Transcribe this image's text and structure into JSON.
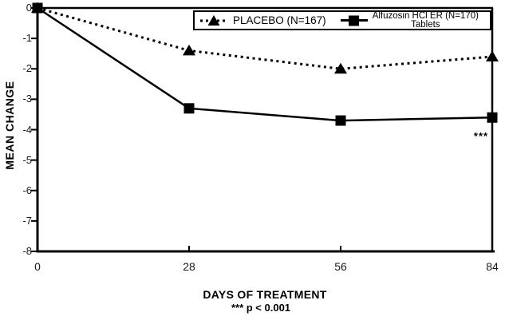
{
  "chart_data": {
    "type": "line",
    "title": "",
    "xlabel": "DAYS OF TREATMENT",
    "ylabel": "MEAN CHANGE",
    "footnote": "*** p < 0.001",
    "significance_annotation": "***",
    "x": [
      0,
      28,
      56,
      84
    ],
    "x_tick_labels": [
      "0",
      "28",
      "56",
      "84"
    ],
    "y_tick_labels": [
      "0",
      "-1",
      "-2",
      "-3",
      "-4",
      "-5",
      "-6",
      "-7",
      "-8"
    ],
    "xlim": [
      0,
      84
    ],
    "ylim": [
      -8,
      0
    ],
    "grid": false,
    "legend_position": "top-inside",
    "series": [
      {
        "name": "PLACEBO (N=167)",
        "marker": "triangle",
        "line_style": "dotted",
        "color": "#000000",
        "values": [
          0,
          -1.4,
          -2.0,
          -1.6
        ]
      },
      {
        "name": "Alfuzosin HCl ER (N=170) Tablets",
        "marker": "square",
        "line_style": "solid",
        "color": "#000000",
        "values": [
          0,
          -3.3,
          -3.7,
          -3.6
        ]
      }
    ]
  },
  "legend": {
    "placebo_label": "PLACEBO (N=167)",
    "alfuzosin_label_line1": "Alfuzosin HCl ER (N=170)",
    "alfuzosin_label_line2": "Tablets"
  },
  "colors": {
    "foreground": "#000000",
    "background": "#ffffff"
  }
}
